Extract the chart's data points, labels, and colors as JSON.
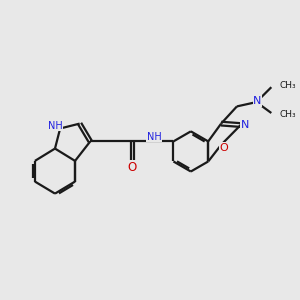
{
  "bg_color": "#e8e8e8",
  "bond_color": "#1a1a1a",
  "n_color": "#2020e0",
  "o_color": "#cc0000",
  "line_width": 1.6,
  "figsize": [
    3.0,
    3.0
  ],
  "dpi": 100,
  "xlim": [
    0,
    10
  ],
  "ylim": [
    0,
    10
  ]
}
